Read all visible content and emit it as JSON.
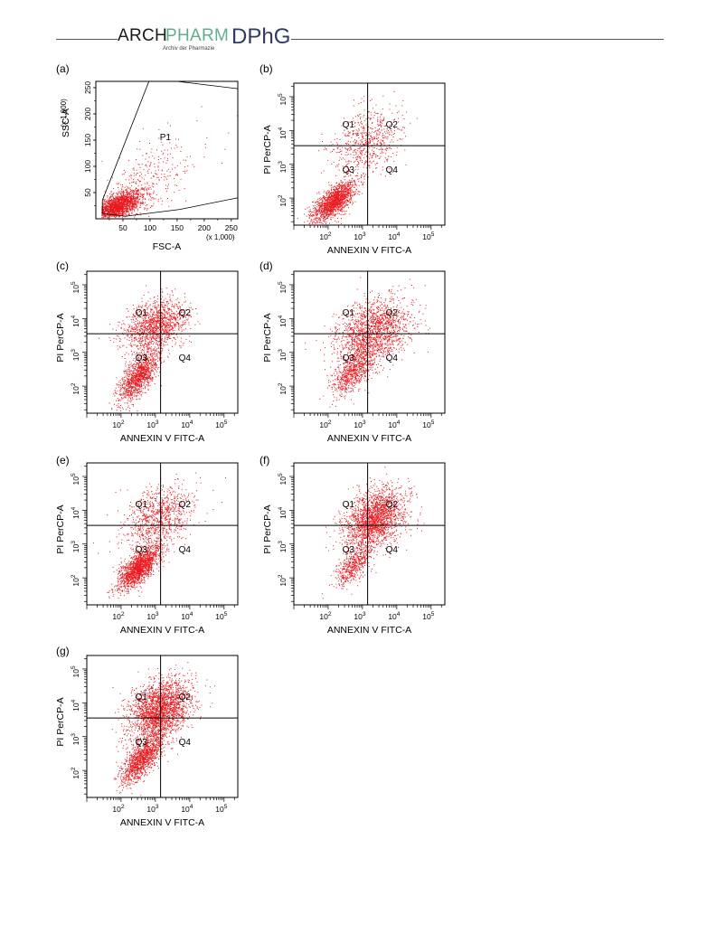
{
  "header": {
    "brand_arch": "ARCH",
    "brand_pharm": "PHARM",
    "brand_sub": "Archiv der Pharmazie",
    "brand_dphg": "DPhG"
  },
  "colors": {
    "dots": "#e8191f",
    "brand_green": "#5fb08a",
    "brand_blue": "#2f3a66"
  },
  "chart_data": [
    {
      "panel": "(a)",
      "type": "scatter",
      "xlabel": "FSC-A",
      "ylabel": "SSC-A",
      "x_unit": "(x 1,000)",
      "y_unit": "(x 1,000)",
      "xlim": [
        0,
        262
      ],
      "ylim": [
        0,
        262
      ],
      "xticks": [
        "50",
        "100",
        "150",
        "200",
        "250"
      ],
      "yticks": [
        "50",
        "100",
        "150",
        "200",
        "250"
      ],
      "gate_label": "P1",
      "gate_polygon": [
        [
          12,
          10
        ],
        [
          12,
          35
        ],
        [
          98,
          262
        ],
        [
          150,
          262
        ],
        [
          262,
          248
        ],
        [
          262,
          40
        ],
        [
          155,
          18
        ],
        [
          55,
          5
        ]
      ],
      "populations": [
        {
          "cx": 40,
          "cy": 25,
          "sx": 22,
          "sy": 14,
          "n": 1800
        },
        {
          "cx": 90,
          "cy": 70,
          "sx": 45,
          "sy": 45,
          "n": 350
        }
      ]
    },
    {
      "panel": "(b)",
      "type": "scatter",
      "xlabel": "ANNEXIN V FITC-A",
      "ylabel": "PI PerCP-A",
      "xlim_log10": [
        1,
        5.4
      ],
      "ylim_log10": [
        1.2,
        5.4
      ],
      "divider_log10": [
        3.15,
        3.55
      ],
      "quadrants": [
        "Q1",
        "Q2",
        "Q3",
        "Q4"
      ],
      "populations": [
        {
          "cx": 2.15,
          "cy": 1.9,
          "sx": 0.32,
          "sy": 0.3,
          "n": 1500,
          "corr": 0.7
        },
        {
          "cx": 3.1,
          "cy": 3.7,
          "sx": 0.5,
          "sy": 0.5,
          "n": 650
        }
      ]
    },
    {
      "panel": "(c)",
      "type": "scatter",
      "xlabel": "ANNEXIN V FITC-A",
      "ylabel": "PI PerCP-A",
      "xlim_log10": [
        1,
        5.4
      ],
      "ylim_log10": [
        1.2,
        5.4
      ],
      "divider_log10": [
        3.15,
        3.55
      ],
      "quadrants": [
        "Q1",
        "Q2",
        "Q3",
        "Q4"
      ],
      "populations": [
        {
          "cx": 2.5,
          "cy": 2.3,
          "sx": 0.3,
          "sy": 0.4,
          "n": 1200,
          "corr": 0.7
        },
        {
          "cx": 3.0,
          "cy": 3.8,
          "sx": 0.45,
          "sy": 0.4,
          "n": 1300
        }
      ]
    },
    {
      "panel": "(d)",
      "type": "scatter",
      "xlabel": "ANNEXIN V FITC-A",
      "ylabel": "PI PerCP-A",
      "xlim_log10": [
        1,
        5.4
      ],
      "ylim_log10": [
        1.2,
        5.4
      ],
      "divider_log10": [
        3.15,
        3.55
      ],
      "quadrants": [
        "Q1",
        "Q2",
        "Q3",
        "Q4"
      ],
      "populations": [
        {
          "cx": 2.7,
          "cy": 2.4,
          "sx": 0.3,
          "sy": 0.35,
          "n": 700,
          "corr": 0.6
        },
        {
          "cx": 3.3,
          "cy": 3.6,
          "sx": 0.55,
          "sy": 0.5,
          "n": 1700
        }
      ]
    },
    {
      "panel": "(e)",
      "type": "scatter",
      "xlabel": "ANNEXIN V FITC-A",
      "ylabel": "PI PerCP-A",
      "xlim_log10": [
        1,
        5.4
      ],
      "ylim_log10": [
        1.2,
        5.4
      ],
      "divider_log10": [
        3.15,
        3.55
      ],
      "quadrants": [
        "Q1",
        "Q2",
        "Q3",
        "Q4"
      ],
      "populations": [
        {
          "cx": 2.5,
          "cy": 2.3,
          "sx": 0.3,
          "sy": 0.32,
          "n": 1600,
          "corr": 0.7
        },
        {
          "cx": 3.1,
          "cy": 3.8,
          "sx": 0.5,
          "sy": 0.45,
          "n": 900
        }
      ]
    },
    {
      "panel": "(f)",
      "type": "scatter",
      "xlabel": "ANNEXIN V FITC-A",
      "ylabel": "PI PerCP-A",
      "xlim_log10": [
        1,
        5.4
      ],
      "ylim_log10": [
        1.2,
        5.4
      ],
      "divider_log10": [
        3.15,
        3.55
      ],
      "quadrants": [
        "Q1",
        "Q2",
        "Q3",
        "Q4"
      ],
      "populations": [
        {
          "cx": 2.7,
          "cy": 2.4,
          "sx": 0.25,
          "sy": 0.3,
          "n": 500,
          "corr": 0.6
        },
        {
          "cx": 3.35,
          "cy": 3.75,
          "sx": 0.45,
          "sy": 0.45,
          "n": 2000
        }
      ]
    },
    {
      "panel": "(g)",
      "type": "scatter",
      "xlabel": "ANNEXIN V FITC-A",
      "ylabel": "PI PerCP-A",
      "xlim_log10": [
        1,
        5.4
      ],
      "ylim_log10": [
        1.2,
        5.4
      ],
      "divider_log10": [
        3.15,
        3.55
      ],
      "quadrants": [
        "Q1",
        "Q2",
        "Q3",
        "Q4"
      ],
      "populations": [
        {
          "cx": 2.6,
          "cy": 2.35,
          "sx": 0.3,
          "sy": 0.35,
          "n": 1200,
          "corr": 0.7
        },
        {
          "cx": 3.1,
          "cy": 3.8,
          "sx": 0.45,
          "sy": 0.45,
          "n": 2300
        }
      ]
    }
  ]
}
